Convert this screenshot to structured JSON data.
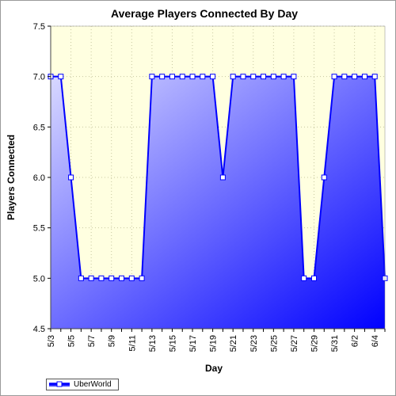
{
  "chart_data": {
    "type": "area",
    "title": "Average Players Connected By Day",
    "xlabel": "Day",
    "ylabel": "Players Connected",
    "ylim": [
      4.5,
      7.5
    ],
    "yticks": [
      4.5,
      5.0,
      5.5,
      6.0,
      6.5,
      7.0,
      7.5
    ],
    "ytick_labels": [
      "4.5",
      "5.0",
      "5.5",
      "6.0",
      "6.5",
      "7.0",
      "7.5"
    ],
    "categories": [
      "5/3",
      "5/4",
      "5/5",
      "5/6",
      "5/7",
      "5/8",
      "5/9",
      "5/10",
      "5/11",
      "5/12",
      "5/13",
      "5/14",
      "5/15",
      "5/16",
      "5/17",
      "5/18",
      "5/19",
      "5/20",
      "5/21",
      "5/22",
      "5/23",
      "5/24",
      "5/25",
      "5/26",
      "5/27",
      "5/28",
      "5/29",
      "5/30",
      "5/31",
      "6/1",
      "6/2",
      "6/3",
      "6/4",
      "6/5"
    ],
    "xtick_labels": [
      "5/3",
      "",
      "5/5",
      "",
      "5/7",
      "",
      "5/9",
      "",
      "5/11",
      "",
      "5/13",
      "",
      "5/15",
      "",
      "5/17",
      "",
      "5/19",
      "",
      "5/21",
      "",
      "5/23",
      "",
      "5/25",
      "",
      "5/27",
      "",
      "5/29",
      "",
      "5/31",
      "",
      "6/2",
      "",
      "6/4",
      ""
    ],
    "series": [
      {
        "name": "UberWorld",
        "values": [
          7,
          7,
          6,
          5,
          5,
          5,
          5,
          5,
          5,
          5,
          7,
          7,
          7,
          7,
          7,
          7,
          7,
          6,
          7,
          7,
          7,
          7,
          7,
          7,
          7,
          5,
          5,
          6,
          7,
          7,
          7,
          7,
          7,
          5
        ]
      }
    ],
    "grid": true,
    "legend_position": "bottom-left",
    "colors": {
      "line": "#0000ff",
      "fill_light": "#d8d8ff",
      "fill_dark": "#0000ff",
      "plot_bg": "#ffffe0",
      "grid": "#c8c8a0"
    }
  }
}
